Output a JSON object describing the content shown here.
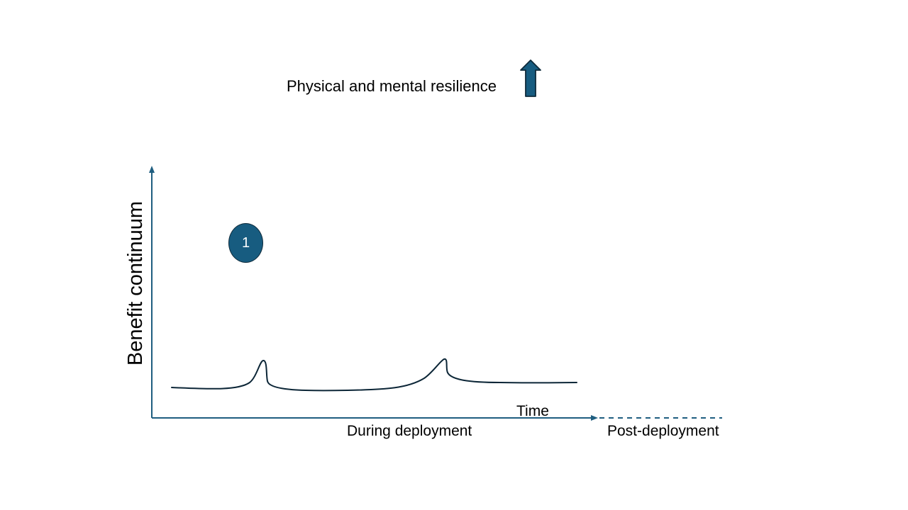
{
  "headline": {
    "text": "Physical and mental resilience",
    "indicator_icon": "arrow-up-icon"
  },
  "axes": {
    "y_label": "Benefit continuum",
    "x_label": "Time"
  },
  "phases": {
    "during": "During deployment",
    "post": "Post-deployment"
  },
  "step_marker": {
    "number": "1"
  },
  "colors": {
    "accent": "#175c80",
    "axis": "#1f5e80",
    "curve": "#0c2637",
    "arrow_outline": "#0e2a3a"
  }
}
